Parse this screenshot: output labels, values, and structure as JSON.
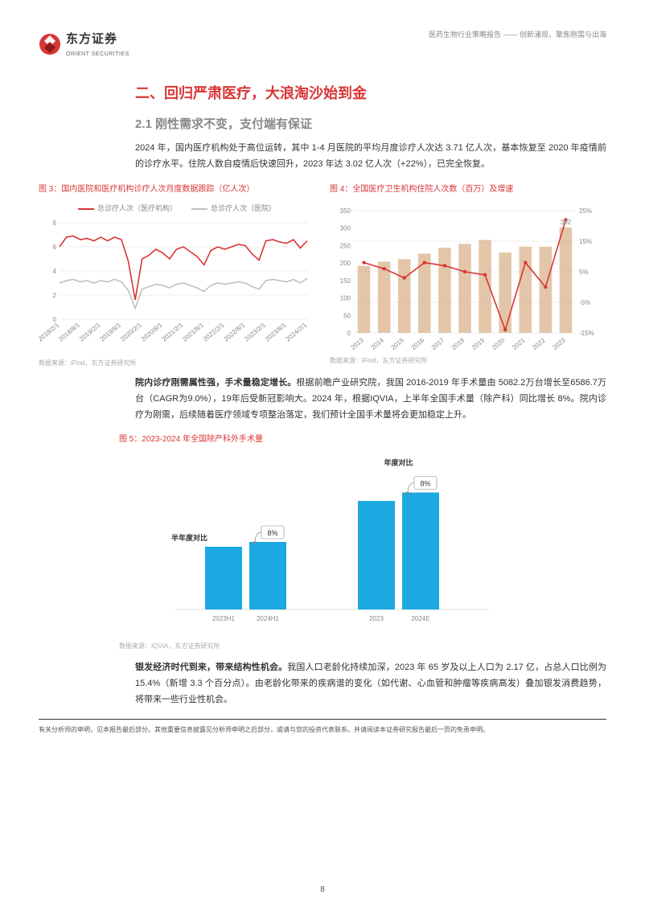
{
  "header": {
    "logo_cn": "东方证券",
    "logo_en": "ORIENT SECURITIES",
    "right_text": "医药生物行业策略报告 —— 创新涌现，聚焦刚需与出海"
  },
  "section": {
    "h1": "二、回归严肃医疗，大浪淘沙始到金",
    "h2": "2.1 刚性需求不变，支付端有保证",
    "para1": "2024 年，国内医疗机构处于高位运转，其中 1-4 月医院的平均月度诊疗人次达 3.71 亿人次，基本恢复至 2020 年疫情前的诊疗水平。住院人数自疫情后快速回升，2023 年达 3.02 亿人次（+22%），已完全恢复。",
    "para2_bold": "院内诊疗刚需属性强，手术量稳定增长。",
    "para2_rest": "根据前瞻产业研究院，我国 2016-2019 年手术量由 5082.2万台增长至6586.7万台（CAGR为9.0%），19年后受新冠影响大。2024 年，根据IQVIA，上半年全国手术量（除产科）同比增长 8%。院内诊疗为刚需，后续随着医疗领域专项整治落定，我们预计全国手术量将会更加稳定上升。",
    "para3_bold": "银发经济时代到来，带来结构性机会。",
    "para3_rest": "我国人口老龄化持续加深，2023 年 65 岁及以上人口为 2.17 亿，占总人口比例为 15.4%（新增 3.3 个百分点）。由老龄化带来的疾病谱的变化（如代谢、心血管和肿瘤等疾病高发）叠加银发消费趋势，将带来一些行业性机会。"
  },
  "chart3": {
    "title": "图 3：国内医院和医疗机构诊疗人次月度数据跟踪（亿人次）",
    "legend1": "总诊疗人次（医疗机构）",
    "legend2": "总诊疗人次（医院）",
    "legend1_color": "#d93636",
    "legend2_color": "#c0c0c0",
    "source": "数据来源：iFind，东方证券研究所",
    "y_ticks": [
      0,
      2,
      4,
      6,
      8
    ],
    "x_labels": [
      "2018/2/1",
      "2018/8/1",
      "2019/2/1",
      "2019/8/1",
      "2020/2/1",
      "2020/8/1",
      "2021/2/1",
      "2021/8/1",
      "2022/2/1",
      "2022/8/1",
      "2023/2/1",
      "2023/8/1",
      "2024/2/1"
    ],
    "series1": [
      6.0,
      6.8,
      6.9,
      6.6,
      6.7,
      6.5,
      6.8,
      6.5,
      6.8,
      6.6,
      4.8,
      1.6,
      5.0,
      5.3,
      5.8,
      5.5,
      5.0,
      5.8,
      6.0,
      5.6,
      5.2,
      4.5,
      5.7,
      6.0,
      5.8,
      6.0,
      6.2,
      6.1,
      5.4,
      4.9,
      6.5,
      6.6,
      6.4,
      6.3,
      6.6,
      5.9,
      6.5
    ],
    "series2": [
      3.0,
      3.2,
      3.3,
      3.1,
      3.2,
      3.0,
      3.2,
      3.1,
      3.3,
      3.1,
      2.4,
      0.9,
      2.5,
      2.7,
      2.9,
      2.8,
      2.6,
      2.9,
      3.0,
      2.8,
      2.6,
      2.3,
      2.8,
      3.0,
      2.9,
      3.0,
      3.1,
      3.0,
      2.7,
      2.5,
      3.2,
      3.3,
      3.2,
      3.1,
      3.3,
      3.0,
      3.4
    ]
  },
  "chart4": {
    "title": "图 4：全国医疗卫生机构住院人次数（百万）及增速",
    "source": "数据来源：iFind，东方证券研究所",
    "y_left_ticks": [
      0,
      50,
      100,
      150,
      200,
      250,
      300,
      350
    ],
    "y_right_ticks": [
      -15,
      -5,
      5,
      15,
      25
    ],
    "x_labels": [
      "2013",
      "2014",
      "2015",
      "2016",
      "2017",
      "2018",
      "2019",
      "2020",
      "2021",
      "2022",
      "2023"
    ],
    "bars": [
      192,
      204,
      211,
      227,
      244,
      255,
      266,
      230,
      247,
      247,
      302
    ],
    "line": [
      8,
      6,
      3,
      8,
      7,
      5,
      4,
      -14,
      8,
      0,
      22
    ],
    "bar_color": "#d9b38c",
    "line_color": "#d93636",
    "highlight_label": "302"
  },
  "chart5": {
    "title": "图 5：2023-2024 年全国除产科外手术量",
    "source": "数据来源：IQVIA，东方证券研究所",
    "group1_label": "半年度对比",
    "group2_label": "年度对比",
    "callout": "8%",
    "bars": [
      {
        "label": "2023H1",
        "value": 52
      },
      {
        "label": "2024H1",
        "value": 56
      },
      {
        "label": "2023",
        "value": 90
      },
      {
        "label": "2024E",
        "value": 97
      }
    ],
    "bar_color": "#1ca8e0"
  },
  "footer": {
    "text": "有关分析师的申明，见本报告最后部分。其他重要信息披露见分析师申明之后部分，或请与您的投资代表联系。并请阅读本证券研究报告最后一页的免责申明。",
    "page": "8"
  }
}
